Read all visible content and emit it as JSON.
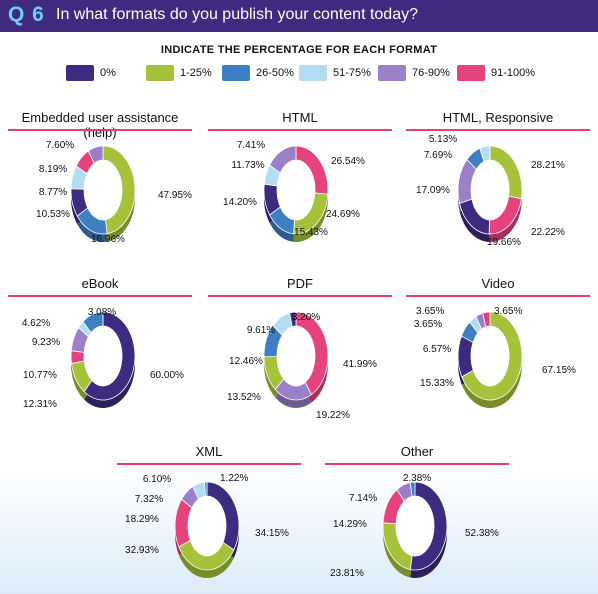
{
  "header": {
    "qnum": "Q 6",
    "question": "In what formats do you publish your content today?"
  },
  "subtitle": "INDICATE THE PERCENTAGE FOR EACH FORMAT",
  "legend": [
    {
      "label": "0%",
      "color": "#3d2b7f"
    },
    {
      "label": "1-25%",
      "color": "#a6c23a"
    },
    {
      "label": "26-50%",
      "color": "#3e7fc4"
    },
    {
      "label": "51-75%",
      "color": "#b2ddf3"
    },
    {
      "label": "76-90%",
      "color": "#9b7fc9"
    },
    {
      "label": "91-100%",
      "color": "#e6427d"
    }
  ],
  "chart_data": [
    {
      "type": "pie",
      "title": "Embedded user assistance (help)",
      "categories": [
        "0%",
        "1-25%",
        "26-50%",
        "51-75%",
        "76-90%",
        "91-100%"
      ],
      "values": [
        10.53,
        47.95,
        16.96,
        8.77,
        7.6,
        8.19
      ],
      "labels": [
        "10.53%",
        "47.95%",
        "16.96%",
        "8.77%",
        "7.60%",
        "8.19%"
      ]
    },
    {
      "type": "pie",
      "title": "HTML",
      "categories": [
        "0%",
        "1-25%",
        "26-50%",
        "51-75%",
        "76-90%",
        "91-100%"
      ],
      "values": [
        11.73,
        24.69,
        14.2,
        7.41,
        15.43,
        26.54
      ],
      "labels": [
        "11.73%",
        "24.69%",
        "14.20%",
        "7.41%",
        "15.43%",
        "26.54%"
      ]
    },
    {
      "type": "pie",
      "title": "HTML, Responsive",
      "categories": [
        "0%",
        "1-25%",
        "26-50%",
        "51-75%",
        "76-90%",
        "91-100%"
      ],
      "values": [
        19.66,
        28.21,
        7.69,
        5.13,
        17.09,
        22.22
      ],
      "labels": [
        "19.66%",
        "28.21%",
        "7.69%",
        "5.13%",
        "17.09%",
        "22.22%"
      ]
    },
    {
      "type": "pie",
      "title": "eBook",
      "categories": [
        "0%",
        "1-25%",
        "26-50%",
        "51-75%",
        "76-90%",
        "91-100%"
      ],
      "values": [
        60.0,
        12.31,
        10.77,
        3.08,
        9.23,
        4.62
      ],
      "labels": [
        "60.00%",
        "12.31%",
        "10.77%",
        "3.08%",
        "9.23%",
        "4.62%"
      ]
    },
    {
      "type": "pie",
      "title": "PDF",
      "categories": [
        "0%",
        "1-25%",
        "26-50%",
        "51-75%",
        "76-90%",
        "91-100%"
      ],
      "values": [
        3.2,
        13.52,
        12.46,
        9.61,
        19.22,
        41.99
      ],
      "labels": [
        "3.20%",
        "13.52%",
        "12.46%",
        "9.61%",
        "19.22%",
        "41.99%"
      ]
    },
    {
      "type": "pie",
      "title": "Video",
      "categories": [
        "0%",
        "1-25%",
        "26-50%",
        "51-75%",
        "76-90%",
        "91-100%"
      ],
      "values": [
        15.33,
        67.15,
        6.57,
        3.65,
        3.65,
        3.65
      ],
      "labels": [
        "15.33%",
        "67.15%",
        "6.57%",
        "3.65%",
        "3.65%",
        "3.65%"
      ]
    },
    {
      "type": "pie",
      "title": "XML",
      "categories": [
        "0%",
        "1-25%",
        "26-50%",
        "51-75%",
        "76-90%",
        "91-100%"
      ],
      "values": [
        34.15,
        32.93,
        1.22,
        6.1,
        7.32,
        18.29
      ],
      "labels": [
        "34.15%",
        "32.93%",
        "1.22%",
        "6.10%",
        "7.32%",
        "18.29%"
      ]
    },
    {
      "type": "pie",
      "title": "Other",
      "categories": [
        "0%",
        "1-25%",
        "26-50%",
        "51-75%",
        "76-90%",
        "91-100%"
      ],
      "values": [
        52.38,
        23.81,
        2.38,
        0,
        7.14,
        14.29
      ],
      "labels": [
        "52.38%",
        "23.81%",
        "2.38%",
        "",
        "7.14%",
        "14.29%"
      ]
    }
  ]
}
